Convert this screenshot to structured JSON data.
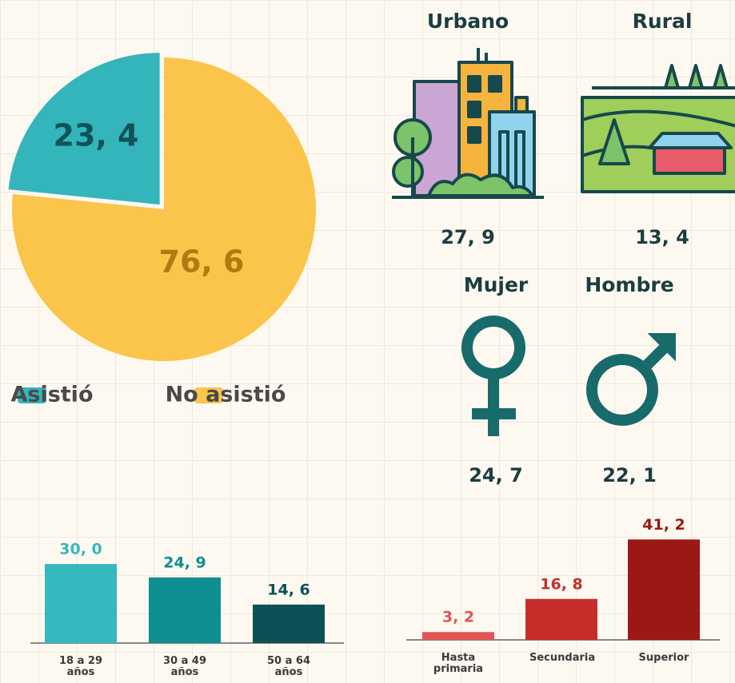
{
  "chart_data": [
    {
      "type": "pie",
      "categories": [
        "Asistió",
        "No asistió"
      ],
      "values": [
        23.4,
        76.6
      ],
      "value_labels": [
        "23, 4",
        "76, 6"
      ],
      "colors": [
        "#33b5bb",
        "#fac54a"
      ],
      "label_colors": [
        "#0e5358",
        "#b07a10"
      ]
    },
    {
      "type": "icons",
      "categories": [
        "Urbano",
        "Rural"
      ],
      "values": [
        27.9,
        13.4
      ],
      "value_labels": [
        "27, 9",
        "13, 4"
      ]
    },
    {
      "type": "icons",
      "categories": [
        "Mujer",
        "Hombre"
      ],
      "values": [
        24.7,
        22.1
      ],
      "value_labels": [
        "24, 7",
        "22, 1"
      ]
    },
    {
      "type": "bar",
      "categories": [
        "18 a 29 años",
        "30 a 49 años",
        "50 a 64 años"
      ],
      "values": [
        30.0,
        24.9,
        14.6
      ],
      "value_labels": [
        "30, 0",
        "24, 9",
        "14, 6"
      ],
      "colors": [
        "#35b8be",
        "#0f8f91",
        "#0d5157"
      ],
      "label_colors": [
        "#35b8be",
        "#0f8f91",
        "#0d5157"
      ]
    },
    {
      "type": "bar",
      "categories": [
        "Hasta primaria",
        "Secundaria",
        "Superior"
      ],
      "values": [
        3.2,
        16.8,
        41.2
      ],
      "value_labels": [
        "3, 2",
        "16, 8",
        "41, 2"
      ],
      "colors": [
        "#e05454",
        "#c62e2a",
        "#9b1814"
      ],
      "label_colors": [
        "#e05454",
        "#c62e2a",
        "#9b1814"
      ]
    }
  ]
}
